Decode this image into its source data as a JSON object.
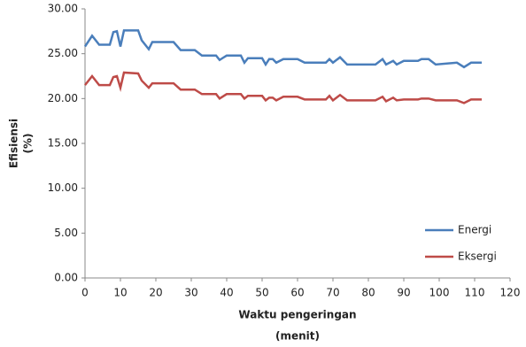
{
  "chart_data": {
    "type": "line",
    "xlabel": [
      "Waktu pengeringan",
      "(menit)"
    ],
    "ylabel": [
      "Efisiensi",
      "(%)"
    ],
    "x": [
      0,
      2,
      4,
      7,
      8,
      9,
      10,
      11,
      15,
      16,
      18,
      19,
      25,
      27,
      31,
      33,
      37,
      38,
      40,
      44,
      45,
      46,
      50,
      51,
      52,
      53,
      54,
      56,
      60,
      62,
      68,
      69,
      70,
      72,
      74,
      82,
      84,
      85,
      87,
      88,
      90,
      94,
      95,
      97,
      99,
      105,
      107,
      109,
      112
    ],
    "series": [
      {
        "name": "Energi",
        "color": "#4a7ebb",
        "values": [
          25.8,
          27,
          26,
          26,
          27.4,
          27.5,
          25.8,
          27.6,
          27.6,
          26.5,
          25.5,
          26.3,
          26.3,
          25.4,
          25.4,
          24.8,
          24.8,
          24.3,
          24.8,
          24.8,
          24,
          24.5,
          24.5,
          23.8,
          24.4,
          24.4,
          24,
          24.4,
          24.4,
          24,
          24,
          24.4,
          24,
          24.6,
          23.8,
          23.8,
          24.4,
          23.8,
          24.2,
          23.8,
          24.2,
          24.2,
          24.4,
          24.4,
          23.8,
          24,
          23.5,
          24,
          24
        ]
      },
      {
        "name": "Eksergi",
        "color": "#be4b48",
        "values": [
          21.5,
          22.5,
          21.5,
          21.5,
          22.4,
          22.5,
          21.2,
          22.9,
          22.8,
          22,
          21.2,
          21.7,
          21.7,
          21,
          21,
          20.5,
          20.5,
          20,
          20.5,
          20.5,
          20,
          20.3,
          20.3,
          19.8,
          20.1,
          20.1,
          19.8,
          20.2,
          20.2,
          19.9,
          19.9,
          20.3,
          19.8,
          20.4,
          19.8,
          19.8,
          20.2,
          19.7,
          20.1,
          19.8,
          19.9,
          19.9,
          20,
          20,
          19.8,
          19.8,
          19.5,
          19.9,
          19.9
        ]
      }
    ],
    "xlim": [
      0,
      120
    ],
    "xticks": [
      0,
      10,
      20,
      30,
      40,
      50,
      60,
      70,
      80,
      90,
      100,
      110,
      120
    ],
    "ylim": [
      0,
      30
    ],
    "yticks": [
      {
        "value": 0,
        "label": "0.00"
      },
      {
        "value": 5,
        "label": "5.00"
      },
      {
        "value": 10,
        "label": "10.00"
      },
      {
        "value": 15,
        "label": "15.00"
      },
      {
        "value": 20,
        "label": "20.00"
      },
      {
        "value": 25,
        "label": "25.00"
      },
      {
        "value": 30,
        "label": "30.00"
      }
    ],
    "legend": "lower right"
  }
}
